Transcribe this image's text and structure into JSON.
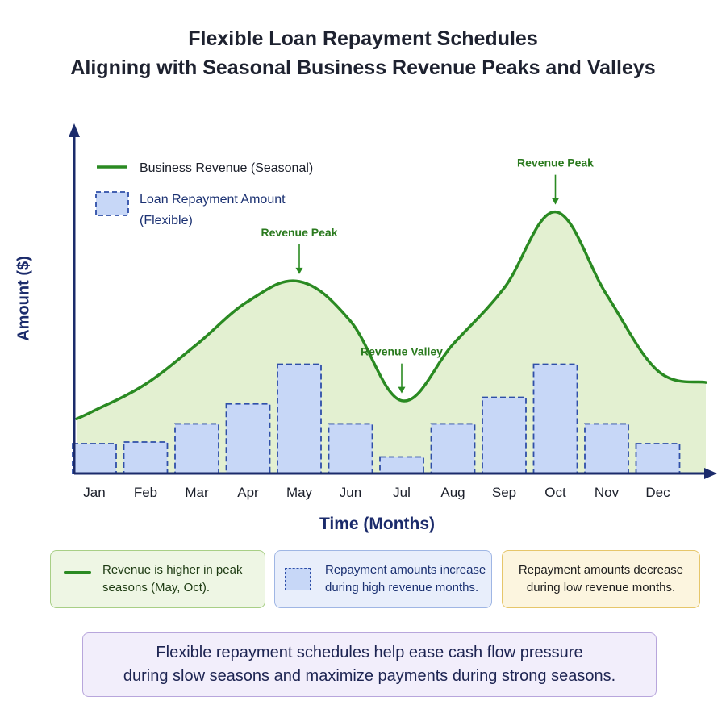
{
  "title": {
    "line1": "Flexible Loan Repayment Schedules",
    "line2": "Aligning with Seasonal Business Revenue Peaks and Valleys"
  },
  "chart_data": {
    "type": "bar",
    "title": "Flexible Loan Repayment Schedules Aligning with Seasonal Business Revenue Peaks and Valleys",
    "xlabel": "Time (Months)",
    "ylabel": "Amount ($)",
    "categories": [
      "Jan",
      "Feb",
      "Mar",
      "Apr",
      "May",
      "Jun",
      "Jul",
      "Aug",
      "Sep",
      "Oct",
      "Nov",
      "Dec"
    ],
    "series": [
      {
        "name": "Loan Repayment Amount (Flexible)",
        "type": "bar",
        "values": [
          9,
          9.5,
          15,
          21,
          33,
          15,
          5,
          15,
          23,
          33,
          15,
          9
        ]
      },
      {
        "name": "Business Revenue (Seasonal)",
        "type": "line",
        "values": [
          19,
          27,
          39,
          52,
          58,
          46,
          22,
          39,
          56,
          79,
          54,
          31
        ]
      }
    ],
    "ylim": [
      0,
      104
    ],
    "grid": false,
    "legend_position": "top-left",
    "annotations": [
      {
        "text": "Revenue Peak",
        "category": "May"
      },
      {
        "text": "Revenue Valley",
        "category": "Jul"
      },
      {
        "text": "Revenue Peak",
        "category": "Oct"
      }
    ],
    "colors": {
      "revenue_line": "#2a8a22",
      "revenue_fill": "#e3f0d1",
      "bar_fill": "#c7d7f7",
      "bar_stroke": "#2f4fa8",
      "axis": "#1b2b6b"
    }
  },
  "legend": {
    "revenue": "Business Revenue (Seasonal)",
    "repayment_line1": "Loan Repayment Amount",
    "repayment_line2": "(Flexible)"
  },
  "notes": {
    "green": {
      "line1": "Revenue is higher in peak",
      "line2": "seasons (May, Oct)."
    },
    "blue": {
      "line1": "Repayment amounts increase",
      "line2": "during high revenue months."
    },
    "yellow": {
      "line1": "Repayment amounts decrease",
      "line2": "during low revenue months."
    }
  },
  "summary": {
    "line1": "Flexible repayment schedules help ease cash flow pressure",
    "line2": "during slow seasons and maximize payments during strong seasons."
  }
}
